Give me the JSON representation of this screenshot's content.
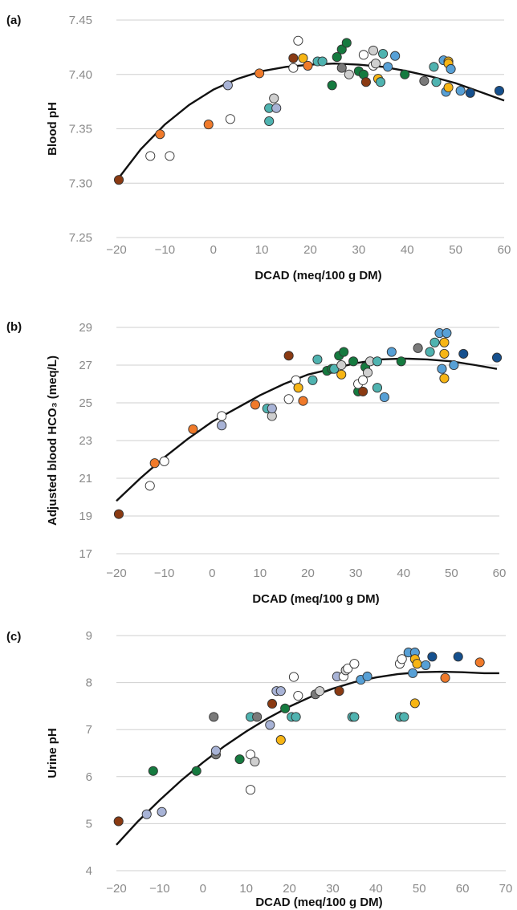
{
  "colors": {
    "white": "#ffffff",
    "lavender": "#a8b3d6",
    "orange": "#f07a2a",
    "brown": "#8a3a12",
    "teal": "#4fb3b0",
    "green": "#157a3f",
    "gray": "#7a7a7a",
    "lightgray": "#cfcfcf",
    "yellow": "#f7b514",
    "lightblue": "#57a0d6",
    "darkblue": "#15508e"
  },
  "chart_data": [
    {
      "panel": "(a)",
      "type": "scatter",
      "xlabel": "DCAD (meq/100 g DM)",
      "ylabel": "Blood pH",
      "xlim": [
        -20,
        60
      ],
      "ylim": [
        7.25,
        7.45
      ],
      "xticks": [
        "−20",
        "−10",
        "0",
        "10",
        "20",
        "30",
        "40",
        "50",
        "60"
      ],
      "yticks": [
        "7.45",
        "7.40",
        "7.35",
        "7.30",
        "7.25"
      ],
      "curve": [
        [
          -20,
          7.302
        ],
        [
          -15,
          7.331
        ],
        [
          -10,
          7.354
        ],
        [
          -5,
          7.372
        ],
        [
          0,
          7.386
        ],
        [
          5,
          7.396
        ],
        [
          10,
          7.403
        ],
        [
          15,
          7.407
        ],
        [
          20,
          7.409
        ],
        [
          25,
          7.41
        ],
        [
          30,
          7.409
        ],
        [
          35,
          7.407
        ],
        [
          40,
          7.403
        ],
        [
          45,
          7.398
        ],
        [
          50,
          7.392
        ],
        [
          55,
          7.384
        ],
        [
          60,
          7.376
        ]
      ],
      "points": [
        [
          -19.5,
          7.303,
          "brown"
        ],
        [
          -13,
          7.325,
          "white"
        ],
        [
          -11,
          7.345,
          "orange"
        ],
        [
          -9,
          7.325,
          "white"
        ],
        [
          -1,
          7.354,
          "orange"
        ],
        [
          3,
          7.39,
          "lavender"
        ],
        [
          3.5,
          7.359,
          "white"
        ],
        [
          9.5,
          7.401,
          "orange"
        ],
        [
          11.5,
          7.357,
          "teal"
        ],
        [
          11.5,
          7.369,
          "teal"
        ],
        [
          12.5,
          7.378,
          "lightgray"
        ],
        [
          13,
          7.369,
          "lavender"
        ],
        [
          16.5,
          7.415,
          "brown"
        ],
        [
          16.5,
          7.406,
          "white"
        ],
        [
          17.5,
          7.431,
          "white"
        ],
        [
          18.5,
          7.415,
          "yellow"
        ],
        [
          19.5,
          7.408,
          "orange"
        ],
        [
          21.5,
          7.412,
          "teal"
        ],
        [
          22.5,
          7.412,
          "teal"
        ],
        [
          24.5,
          7.39,
          "green"
        ],
        [
          25.5,
          7.416,
          "green"
        ],
        [
          26.5,
          7.423,
          "green"
        ],
        [
          26.5,
          7.406,
          "gray"
        ],
        [
          27.5,
          7.429,
          "green"
        ],
        [
          28,
          7.4,
          "lightgray"
        ],
        [
          30,
          7.403,
          "green"
        ],
        [
          31,
          7.418,
          "white"
        ],
        [
          31,
          7.4,
          "green"
        ],
        [
          31.5,
          7.393,
          "brown"
        ],
        [
          33,
          7.422,
          "lightgray"
        ],
        [
          33,
          7.408,
          "white"
        ],
        [
          34,
          7.396,
          "yellow"
        ],
        [
          33.5,
          7.41,
          "lightgray"
        ],
        [
          34.5,
          7.393,
          "teal"
        ],
        [
          35,
          7.419,
          "teal"
        ],
        [
          36,
          7.407,
          "lightblue"
        ],
        [
          37.5,
          7.417,
          "lightblue"
        ],
        [
          39.5,
          7.4,
          "green"
        ],
        [
          43.5,
          7.394,
          "gray"
        ],
        [
          45.5,
          7.407,
          "teal"
        ],
        [
          46,
          7.393,
          "teal"
        ],
        [
          47.5,
          7.413,
          "lightblue"
        ],
        [
          48,
          7.384,
          "lightblue"
        ],
        [
          48.5,
          7.412,
          "yellow"
        ],
        [
          48.5,
          7.41,
          "yellow"
        ],
        [
          48.5,
          7.388,
          "yellow"
        ],
        [
          49,
          7.405,
          "lightblue"
        ],
        [
          51,
          7.385,
          "lightblue"
        ],
        [
          53,
          7.383,
          "darkblue"
        ],
        [
          59,
          7.385,
          "darkblue"
        ]
      ]
    },
    {
      "panel": "(b)",
      "type": "scatter",
      "xlabel": "DCAD (meq/100 g DM)",
      "ylabel": "Adjusted blood HCO₃ (meq/L)",
      "xlim": [
        -20,
        60
      ],
      "ylim": [
        17,
        29
      ],
      "xticks": [
        "−20",
        "−10",
        "0",
        "10",
        "20",
        "30",
        "40",
        "50",
        "60"
      ],
      "yticks": [
        "29",
        "27",
        "25",
        "23",
        "21",
        "19",
        "17"
      ],
      "curve": [
        [
          -20,
          19.8
        ],
        [
          -15,
          21.0
        ],
        [
          -10,
          22.1
        ],
        [
          -5,
          23.1
        ],
        [
          0,
          24.0
        ],
        [
          5,
          24.7
        ],
        [
          10,
          25.4
        ],
        [
          15,
          26.0
        ],
        [
          20,
          26.5
        ],
        [
          25,
          26.8
        ],
        [
          30,
          27.1
        ],
        [
          35,
          27.3
        ],
        [
          40,
          27.35
        ],
        [
          45,
          27.3
        ],
        [
          50,
          27.2
        ],
        [
          55,
          27.0
        ],
        [
          59.5,
          26.8
        ]
      ],
      "points": [
        [
          -19.5,
          19.1,
          "brown"
        ],
        [
          -13,
          20.6,
          "white"
        ],
        [
          -12,
          21.8,
          "orange"
        ],
        [
          -10,
          21.9,
          "white"
        ],
        [
          -4,
          23.6,
          "orange"
        ],
        [
          2,
          23.8,
          "lavender"
        ],
        [
          2,
          24.3,
          "white"
        ],
        [
          9,
          24.9,
          "orange"
        ],
        [
          11.5,
          24.7,
          "teal"
        ],
        [
          12.5,
          24.3,
          "lightgray"
        ],
        [
          12.5,
          24.7,
          "lavender"
        ],
        [
          16,
          25.2,
          "white"
        ],
        [
          16,
          27.5,
          "brown"
        ],
        [
          17.5,
          26.2,
          "white"
        ],
        [
          18,
          25.8,
          "yellow"
        ],
        [
          19,
          25.1,
          "orange"
        ],
        [
          21,
          26.2,
          "teal"
        ],
        [
          22,
          27.3,
          "teal"
        ],
        [
          24,
          26.7,
          "green"
        ],
        [
          25,
          26.8,
          "green"
        ],
        [
          25.5,
          26.8,
          "teal"
        ],
        [
          26.5,
          27.5,
          "green"
        ],
        [
          27,
          26.5,
          "yellow"
        ],
        [
          27.5,
          27.7,
          "green"
        ],
        [
          27,
          27.0,
          "lightgray"
        ],
        [
          29.5,
          27.2,
          "green"
        ],
        [
          30.5,
          25.6,
          "green"
        ],
        [
          30.5,
          26.0,
          "white"
        ],
        [
          31.5,
          25.6,
          "brown"
        ],
        [
          31.5,
          26.2,
          "white"
        ],
        [
          32,
          26.9,
          "green"
        ],
        [
          32.5,
          26.6,
          "lightgray"
        ],
        [
          33,
          27.2,
          "lightgray"
        ],
        [
          34.5,
          27.2,
          "teal"
        ],
        [
          34.5,
          25.8,
          "teal"
        ],
        [
          36,
          25.3,
          "lightblue"
        ],
        [
          37.5,
          27.7,
          "lightblue"
        ],
        [
          39.5,
          27.2,
          "green"
        ],
        [
          43,
          27.9,
          "gray"
        ],
        [
          45.5,
          27.7,
          "teal"
        ],
        [
          46.5,
          28.2,
          "teal"
        ],
        [
          47.5,
          28.7,
          "lightblue"
        ],
        [
          48,
          26.8,
          "lightblue"
        ],
        [
          48.5,
          26.3,
          "yellow"
        ],
        [
          48.5,
          27.6,
          "yellow"
        ],
        [
          48.5,
          28.2,
          "yellow"
        ],
        [
          49,
          28.7,
          "lightblue"
        ],
        [
          50.5,
          27.0,
          "lightblue"
        ],
        [
          52.5,
          27.6,
          "darkblue"
        ],
        [
          59.5,
          27.4,
          "darkblue"
        ]
      ]
    },
    {
      "panel": "(c)",
      "type": "scatter",
      "xlabel": "DCAD (meq/100 g DM)",
      "ylabel": "Urine pH",
      "xlim": [
        -20,
        70
      ],
      "ylim": [
        4,
        9
      ],
      "xticks": [
        "−20",
        "−10",
        "0",
        "10",
        "20",
        "30",
        "40",
        "50",
        "60",
        "70"
      ],
      "yticks": [
        "9",
        "8",
        "7",
        "6",
        "5",
        "4"
      ],
      "curve": [
        [
          -20,
          4.55
        ],
        [
          -15,
          5.05
        ],
        [
          -10,
          5.5
        ],
        [
          -5,
          5.92
        ],
        [
          0,
          6.3
        ],
        [
          5,
          6.65
        ],
        [
          10,
          6.96
        ],
        [
          15,
          7.24
        ],
        [
          20,
          7.49
        ],
        [
          25,
          7.7
        ],
        [
          30,
          7.87
        ],
        [
          35,
          8.01
        ],
        [
          40,
          8.11
        ],
        [
          45,
          8.18
        ],
        [
          50,
          8.22
        ],
        [
          55,
          8.23
        ],
        [
          60,
          8.22
        ],
        [
          65,
          8.2
        ],
        [
          68.5,
          8.2
        ]
      ],
      "points": [
        [
          -19.5,
          5.05,
          "brown"
        ],
        [
          -13,
          5.2,
          "lavender"
        ],
        [
          -11.5,
          6.12,
          "green"
        ],
        [
          -9.5,
          5.25,
          "lavender"
        ],
        [
          -1.5,
          6.12,
          "green"
        ],
        [
          2.5,
          7.27,
          "gray"
        ],
        [
          3,
          6.47,
          "gray"
        ],
        [
          3,
          6.55,
          "lavender"
        ],
        [
          8.5,
          6.37,
          "green"
        ],
        [
          11,
          5.72,
          "white"
        ],
        [
          11,
          6.47,
          "white"
        ],
        [
          11,
          7.27,
          "teal"
        ],
        [
          12,
          6.32,
          "lightgray"
        ],
        [
          12.5,
          7.27,
          "gray"
        ],
        [
          15.5,
          7.1,
          "lavender"
        ],
        [
          16,
          7.55,
          "brown"
        ],
        [
          17,
          7.82,
          "lavender"
        ],
        [
          18,
          7.82,
          "lavender"
        ],
        [
          18,
          6.78,
          "yellow"
        ],
        [
          19,
          7.45,
          "green"
        ],
        [
          20.5,
          7.27,
          "teal"
        ],
        [
          21,
          8.12,
          "white"
        ],
        [
          21.5,
          7.27,
          "teal"
        ],
        [
          22,
          7.72,
          "white"
        ],
        [
          26,
          7.75,
          "gray"
        ],
        [
          27,
          7.82,
          "lightgray"
        ],
        [
          31,
          8.13,
          "lavender"
        ],
        [
          31.5,
          7.82,
          "brown"
        ],
        [
          32.5,
          8.13,
          "white"
        ],
        [
          33,
          8.26,
          "lightgray"
        ],
        [
          33.5,
          8.3,
          "white"
        ],
        [
          34.5,
          7.27,
          "teal"
        ],
        [
          35,
          8.4,
          "white"
        ],
        [
          35,
          7.27,
          "teal"
        ],
        [
          36.5,
          8.06,
          "lightblue"
        ],
        [
          38,
          8.13,
          "lightblue"
        ],
        [
          45.5,
          8.4,
          "white"
        ],
        [
          45.5,
          7.27,
          "teal"
        ],
        [
          46,
          8.5,
          "white"
        ],
        [
          46.5,
          7.27,
          "teal"
        ],
        [
          47.5,
          8.64,
          "lightblue"
        ],
        [
          48.5,
          8.2,
          "lightblue"
        ],
        [
          49,
          8.64,
          "lightblue"
        ],
        [
          49,
          8.5,
          "yellow"
        ],
        [
          49.5,
          8.4,
          "yellow"
        ],
        [
          49,
          7.56,
          "yellow"
        ],
        [
          51.5,
          8.37,
          "lightblue"
        ],
        [
          53,
          8.55,
          "darkblue"
        ],
        [
          56,
          8.1,
          "orange"
        ],
        [
          59,
          8.55,
          "darkblue"
        ],
        [
          64,
          8.43,
          "orange"
        ]
      ]
    }
  ]
}
